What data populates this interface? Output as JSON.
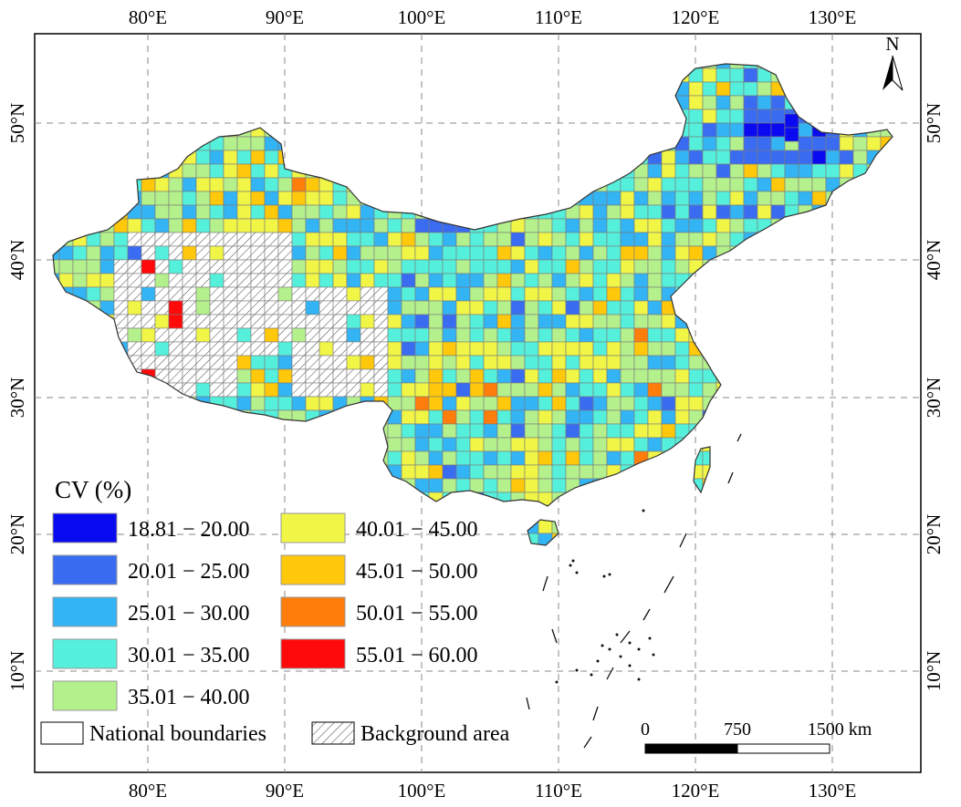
{
  "map": {
    "top_ticks": [
      "80°E",
      "90°E",
      "100°E",
      "110°E",
      "120°E",
      "130°E"
    ],
    "bottom_ticks": [
      "80°E",
      "90°E",
      "100°E",
      "110°E",
      "120°E",
      "130°E"
    ],
    "left_ticks": [
      "50°N",
      "40°N",
      "30°N",
      "20°N",
      "10°N"
    ],
    "right_ticks": [
      "50°N",
      "40°N",
      "30°N",
      "20°N",
      "10°N"
    ],
    "lon_values": [
      80,
      90,
      100,
      110,
      120,
      130
    ],
    "lat_values": [
      50,
      40,
      30,
      20,
      10
    ],
    "north_arrow_label": "N"
  },
  "legend": {
    "title": "CV (%)",
    "classes": [
      {
        "label": "18.81 − 20.00",
        "color": "#0a0af0"
      },
      {
        "label": "20.01 − 25.00",
        "color": "#3a6cf2"
      },
      {
        "label": "25.01 − 30.00",
        "color": "#33b4f5"
      },
      {
        "label": "30.01 − 35.00",
        "color": "#55f0dc"
      },
      {
        "label": "35.01 − 40.00",
        "color": "#b4f08c"
      },
      {
        "label": "40.01 − 45.00",
        "color": "#f0f546"
      },
      {
        "label": "45.01 − 50.00",
        "color": "#ffc80a"
      },
      {
        "label": "50.01 − 55.00",
        "color": "#ff7d0a"
      },
      {
        "label": "55.01 − 60.00",
        "color": "#ff0a0a"
      }
    ],
    "national_boundaries_label": "National boundaries",
    "background_area_label": "Background area"
  },
  "scale_bar": {
    "labels": [
      "0",
      "750",
      "1500 km"
    ]
  }
}
